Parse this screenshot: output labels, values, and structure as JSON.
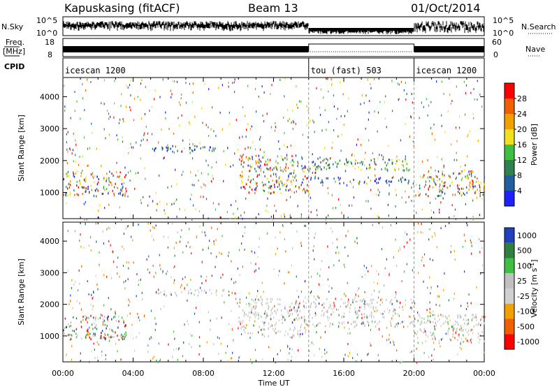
{
  "header": {
    "station": "Kapuskasing (fitACF)",
    "beam": "Beam 13",
    "date": "01/Oct/2014"
  },
  "strip_labels": {
    "nsky": "N.Sky",
    "nsearch": "N.Search",
    "freq": "Freq.",
    "freq_unit": "[MHz]",
    "nave": "Nave",
    "cpid": "CPID",
    "nsky_ticks": [
      "10^5",
      "10^0"
    ],
    "nsearch_ticks": [
      "10^5",
      "10^0"
    ],
    "freq_ticks": [
      "18",
      "8"
    ],
    "nave_ticks": [
      "60",
      "0"
    ]
  },
  "cpid_segments": [
    {
      "label": "icescan 1200",
      "start_hour": 0,
      "end_hour": 14
    },
    {
      "label": "tou (fast) 503",
      "start_hour": 14,
      "end_hour": 20
    },
    {
      "label": "icescan 1200",
      "start_hour": 20,
      "end_hour": 24
    }
  ],
  "colors": {
    "power": [
      "#2020ff",
      "#2060a0",
      "#308050",
      "#40c040",
      "#f0e020",
      "#f0a000",
      "#f06000",
      "#ff0000"
    ],
    "velocity": [
      "#ff0000",
      "#f06000",
      "#f0a000",
      "#d0d0d0",
      "#c0c0c0",
      "#40c040",
      "#2f7f40",
      "#2040c0"
    ]
  },
  "chart_data": [
    {
      "type": "heatmap",
      "ylabel": "Slant Range [km]",
      "xlabel": "Time UT",
      "x_ticks": [
        "00:00",
        "04:00",
        "08:00",
        "12:00",
        "16:00",
        "20:00",
        "00:00"
      ],
      "y_ticks": [
        "1000",
        "2000",
        "3000",
        "4000"
      ],
      "xlim_hours": [
        0,
        24
      ],
      "ylim_km": [
        180,
        4600
      ],
      "colorbar": {
        "label": "Power [dB]",
        "ticks": [
          "4",
          "8",
          "12",
          "16",
          "20",
          "24",
          "28"
        ],
        "range": [
          0,
          32
        ]
      },
      "regions": [
        {
          "t": [
            0.0,
            3.6
          ],
          "r": [
            900,
            1700
          ],
          "level": "mixed"
        },
        {
          "t": [
            5.0,
            9.5
          ],
          "r": [
            2300,
            2500
          ],
          "level": "low"
        },
        {
          "t": [
            10.0,
            14.0
          ],
          "r": [
            1000,
            2200
          ],
          "level": "mixed"
        },
        {
          "t": [
            14.0,
            20.0
          ],
          "r": [
            1700,
            2100
          ],
          "level": "mid"
        },
        {
          "t": [
            14.0,
            20.0
          ],
          "r": [
            1300,
            1500
          ],
          "level": "low"
        },
        {
          "t": [
            20.0,
            24.0
          ],
          "r": [
            900,
            1700
          ],
          "level": "mixed"
        }
      ]
    },
    {
      "type": "heatmap",
      "ylabel": "Slant Range [km]",
      "xlabel": "Time UT",
      "x_ticks": [
        "00:00",
        "04:00",
        "08:00",
        "12:00",
        "16:00",
        "20:00",
        "00:00"
      ],
      "y_ticks": [
        "1000",
        "2000",
        "3000",
        "4000"
      ],
      "xlim_hours": [
        0,
        24
      ],
      "ylim_km": [
        180,
        4600
      ],
      "colorbar": {
        "label": "Velocity [m s",
        "label_sup": "-1",
        "label_end": "]",
        "ticks": [
          "1000",
          "500",
          "100",
          "25",
          "-25",
          "-100",
          "-500",
          "-1000"
        ],
        "range": [
          -1200,
          1200
        ]
      },
      "regions": [
        {
          "t": [
            0.0,
            3.6
          ],
          "r": [
            900,
            1700
          ],
          "level": "mixed"
        },
        {
          "t": [
            5.0,
            9.5
          ],
          "r": [
            2300,
            2500
          ],
          "level": "ground"
        },
        {
          "t": [
            10.0,
            14.0
          ],
          "r": [
            1000,
            2200
          ],
          "level": "ground"
        },
        {
          "t": [
            14.0,
            20.0
          ],
          "r": [
            1600,
            2200
          ],
          "level": "ground"
        },
        {
          "t": [
            14.0,
            20.0
          ],
          "r": [
            1300,
            1500
          ],
          "level": "ground"
        },
        {
          "t": [
            20.0,
            24.0
          ],
          "r": [
            800,
            1700
          ],
          "level": "ground"
        }
      ]
    }
  ]
}
